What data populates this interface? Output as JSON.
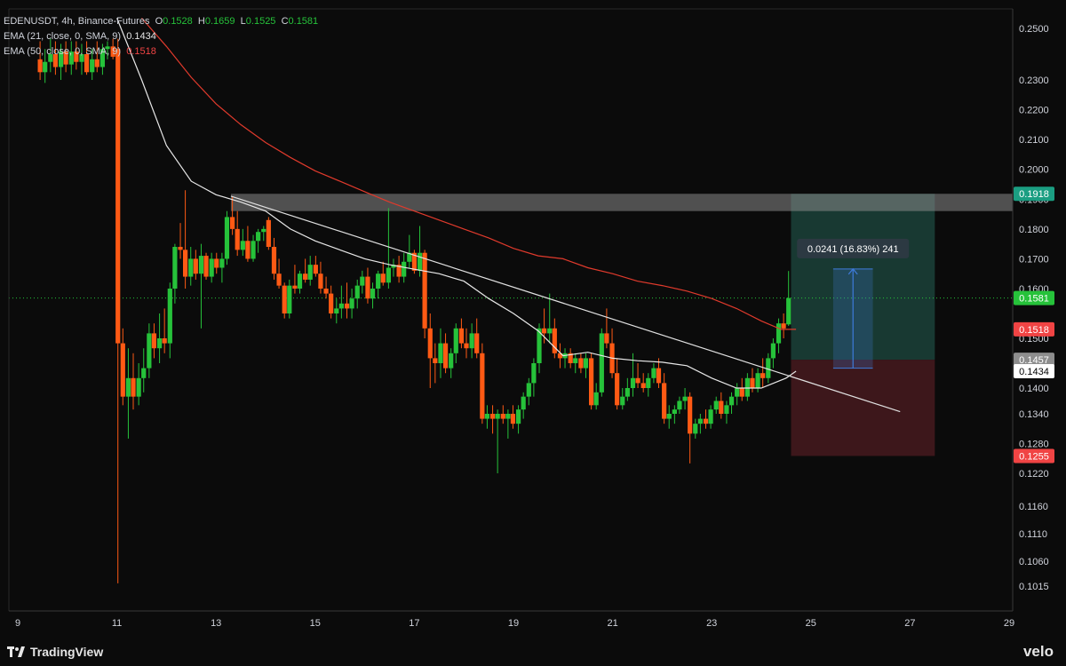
{
  "legend": {
    "symbol": "EDENUSDT, 4h, Binance-Futures",
    "o_label": "O",
    "o_value": "0.1528",
    "h_label": "H",
    "h_value": "0.1659",
    "l_label": "L",
    "l_value": "0.1525",
    "c_label": "C",
    "c_value": "0.1581",
    "ema21_label": "EMA (21, close, 0, SMA, 9)",
    "ema21_value": "0.1434",
    "ema50_label": "EMA (50, close, 0, SMA, 9)",
    "ema50_value": "0.1518"
  },
  "footer": {
    "brand": "TradingView",
    "watermark": "velo"
  },
  "colors": {
    "background": "#0b0b0b",
    "up": "#26c23a",
    "down": "#ff5a14",
    "ema21": "#e8e8e8",
    "ema50": "#e03a2c",
    "target_zone": "#1e4a40",
    "stop_zone": "#4a1a1f",
    "resistance_zone": "#8a8a8a",
    "measure": "#3e7bd9"
  },
  "chart_data": {
    "type": "candlestick",
    "x_ticks": [
      "9",
      "11",
      "13",
      "15",
      "17",
      "19",
      "21",
      "23",
      "25",
      "27",
      "29"
    ],
    "y_ticks": [
      "0.2500",
      "0.2300",
      "0.2200",
      "0.2100",
      "0.2000",
      "0.1900",
      "0.1800",
      "0.1700",
      "0.1600",
      "0.1500",
      "0.1400",
      "0.1340",
      "0.1280",
      "0.1220",
      "0.1160",
      "0.1110",
      "0.1060",
      "0.1015"
    ],
    "ylim": [
      0.0995,
      0.252
    ],
    "xlim": [
      8.8,
      29.25
    ],
    "price_labels": [
      {
        "value": 0.1918,
        "text": "0.1918",
        "color": "#1b9e82",
        "text_color": "#ffffff"
      },
      {
        "value": 0.1581,
        "text": "0.1581",
        "color": "#26c23a",
        "text_color": "#ffffff"
      },
      {
        "value": 0.1518,
        "text": "0.1518",
        "color": "#f04444",
        "text_color": "#ffffff"
      },
      {
        "value": 0.1457,
        "text": "0.1457",
        "color": "#8d8d8d",
        "text_color": "#ffffff"
      },
      {
        "value": 0.1434,
        "text": "0.1434",
        "color": "#ffffff",
        "text_color": "#000000"
      },
      {
        "value": 0.1255,
        "text": "0.1255",
        "color": "#f04444",
        "text_color": "#ffffff"
      }
    ],
    "last_price": 0.1581,
    "position": {
      "x_start": 24.6,
      "x_end": 27.5,
      "entry": 0.1457,
      "target": 0.1918,
      "stop": 0.1255
    },
    "resistance_zone": {
      "x_start": 13.3,
      "x_end": 29.25,
      "top": 0.1918,
      "bottom": 0.186
    },
    "trendline": {
      "x1": 13.3,
      "y1": 0.191,
      "x2": 26.8,
      "y2": 0.1345
    },
    "measure": {
      "x": 25.85,
      "from": 0.144,
      "to": 0.1666,
      "x_start": 25.45,
      "x_end": 26.25,
      "label": "0.0241 (16.83%) 241"
    },
    "ema21": [
      [
        11.0,
        0.254
      ],
      [
        11.5,
        0.23
      ],
      [
        12.0,
        0.208
      ],
      [
        12.5,
        0.196
      ],
      [
        13.0,
        0.1915
      ],
      [
        13.5,
        0.189
      ],
      [
        14.0,
        0.186
      ],
      [
        14.5,
        0.18
      ],
      [
        15.0,
        0.176
      ],
      [
        15.5,
        0.173
      ],
      [
        16.0,
        0.17
      ],
      [
        16.5,
        0.168
      ],
      [
        17.0,
        0.1665
      ],
      [
        17.5,
        0.165
      ],
      [
        18.0,
        0.1625
      ],
      [
        18.5,
        0.158
      ],
      [
        19.0,
        0.155
      ],
      [
        19.5,
        0.1515
      ],
      [
        20.0,
        0.1465
      ],
      [
        20.5,
        0.1472
      ],
      [
        21.0,
        0.146
      ],
      [
        21.5,
        0.1455
      ],
      [
        22.0,
        0.1452
      ],
      [
        22.5,
        0.1445
      ],
      [
        23.0,
        0.142
      ],
      [
        23.5,
        0.14
      ],
      [
        24.0,
        0.14
      ],
      [
        24.5,
        0.142
      ],
      [
        24.7,
        0.1434
      ]
    ],
    "ema50": [
      [
        11.5,
        0.254
      ],
      [
        12.0,
        0.243
      ],
      [
        12.5,
        0.231
      ],
      [
        13.0,
        0.222
      ],
      [
        13.5,
        0.215
      ],
      [
        14.0,
        0.209
      ],
      [
        14.5,
        0.204
      ],
      [
        15.0,
        0.1995
      ],
      [
        15.5,
        0.196
      ],
      [
        16.0,
        0.1925
      ],
      [
        16.5,
        0.189
      ],
      [
        17.0,
        0.186
      ],
      [
        17.5,
        0.183
      ],
      [
        18.0,
        0.18
      ],
      [
        18.5,
        0.177
      ],
      [
        19.0,
        0.1735
      ],
      [
        19.5,
        0.171
      ],
      [
        20.0,
        0.17
      ],
      [
        20.5,
        0.167
      ],
      [
        21.0,
        0.165
      ],
      [
        21.5,
        0.1625
      ],
      [
        22.0,
        0.161
      ],
      [
        22.5,
        0.1595
      ],
      [
        23.0,
        0.158
      ],
      [
        23.5,
        0.156
      ],
      [
        24.0,
        0.1535
      ],
      [
        24.4,
        0.1518
      ],
      [
        24.7,
        0.1518
      ]
    ],
    "candles": [
      [
        9.45,
        0.238,
        0.245,
        0.23,
        0.233
      ],
      [
        9.55,
        0.233,
        0.242,
        0.229,
        0.237
      ],
      [
        9.66,
        0.237,
        0.246,
        0.233,
        0.24
      ],
      [
        9.76,
        0.24,
        0.245,
        0.232,
        0.235
      ],
      [
        9.87,
        0.235,
        0.244,
        0.23,
        0.241
      ],
      [
        9.97,
        0.241,
        0.245,
        0.233,
        0.236
      ],
      [
        10.08,
        0.236,
        0.245,
        0.232,
        0.241
      ],
      [
        10.18,
        0.241,
        0.245,
        0.234,
        0.237
      ],
      [
        10.29,
        0.237,
        0.244,
        0.232,
        0.24
      ],
      [
        10.39,
        0.24,
        0.245,
        0.232,
        0.233
      ],
      [
        10.5,
        0.233,
        0.242,
        0.23,
        0.238
      ],
      [
        10.6,
        0.238,
        0.245,
        0.233,
        0.235
      ],
      [
        10.71,
        0.235,
        0.244,
        0.232,
        0.242
      ],
      [
        10.81,
        0.242,
        0.245,
        0.238,
        0.243
      ],
      [
        10.92,
        0.243,
        0.246,
        0.238,
        0.239
      ],
      [
        11.02,
        0.242,
        0.246,
        0.102,
        0.149
      ],
      [
        11.12,
        0.149,
        0.152,
        0.136,
        0.138
      ],
      [
        11.23,
        0.138,
        0.148,
        0.129,
        0.142
      ],
      [
        11.33,
        0.142,
        0.147,
        0.135,
        0.138
      ],
      [
        11.44,
        0.138,
        0.145,
        0.136,
        0.142
      ],
      [
        11.54,
        0.142,
        0.148,
        0.139,
        0.144
      ],
      [
        11.65,
        0.144,
        0.153,
        0.142,
        0.151
      ],
      [
        11.75,
        0.151,
        0.153,
        0.146,
        0.148
      ],
      [
        11.86,
        0.148,
        0.155,
        0.145,
        0.15
      ],
      [
        11.96,
        0.15,
        0.156,
        0.147,
        0.149
      ],
      [
        12.07,
        0.149,
        0.162,
        0.146,
        0.16
      ],
      [
        12.17,
        0.16,
        0.175,
        0.157,
        0.174
      ],
      [
        12.28,
        0.174,
        0.182,
        0.17,
        0.173
      ],
      [
        12.38,
        0.173,
        0.193,
        0.16,
        0.164
      ],
      [
        12.49,
        0.164,
        0.174,
        0.161,
        0.17
      ],
      [
        12.59,
        0.17,
        0.173,
        0.163,
        0.165
      ],
      [
        12.7,
        0.165,
        0.175,
        0.152,
        0.171
      ],
      [
        12.8,
        0.171,
        0.172,
        0.163,
        0.164
      ],
      [
        12.91,
        0.164,
        0.172,
        0.162,
        0.17
      ],
      [
        13.01,
        0.17,
        0.172,
        0.165,
        0.167
      ],
      [
        13.12,
        0.167,
        0.172,
        0.162,
        0.17
      ],
      [
        13.22,
        0.17,
        0.186,
        0.168,
        0.184
      ],
      [
        13.33,
        0.184,
        0.191,
        0.178,
        0.18
      ],
      [
        13.43,
        0.18,
        0.186,
        0.171,
        0.173
      ],
      [
        13.54,
        0.173,
        0.18,
        0.171,
        0.176
      ],
      [
        13.64,
        0.176,
        0.181,
        0.169,
        0.17
      ],
      [
        13.75,
        0.17,
        0.178,
        0.169,
        0.176
      ],
      [
        13.85,
        0.176,
        0.18,
        0.172,
        0.179
      ],
      [
        13.96,
        0.179,
        0.181,
        0.176,
        0.18
      ],
      [
        14.06,
        0.183,
        0.184,
        0.173,
        0.174
      ],
      [
        14.17,
        0.174,
        0.177,
        0.163,
        0.165
      ],
      [
        14.27,
        0.165,
        0.17,
        0.16,
        0.161
      ],
      [
        14.38,
        0.161,
        0.162,
        0.154,
        0.155
      ],
      [
        14.48,
        0.155,
        0.163,
        0.154,
        0.161
      ],
      [
        14.59,
        0.161,
        0.168,
        0.159,
        0.16
      ],
      [
        14.69,
        0.16,
        0.166,
        0.159,
        0.165
      ],
      [
        14.8,
        0.165,
        0.17,
        0.162,
        0.163
      ],
      [
        14.9,
        0.163,
        0.171,
        0.161,
        0.168
      ],
      [
        15.01,
        0.168,
        0.171,
        0.164,
        0.165
      ],
      [
        15.11,
        0.165,
        0.169,
        0.159,
        0.16
      ],
      [
        15.22,
        0.16,
        0.164,
        0.158,
        0.159
      ],
      [
        15.32,
        0.159,
        0.161,
        0.154,
        0.155
      ],
      [
        15.43,
        0.155,
        0.158,
        0.153,
        0.156
      ],
      [
        15.53,
        0.156,
        0.161,
        0.154,
        0.157
      ],
      [
        15.64,
        0.157,
        0.162,
        0.154,
        0.156
      ],
      [
        15.74,
        0.156,
        0.16,
        0.154,
        0.158
      ],
      [
        15.85,
        0.158,
        0.163,
        0.156,
        0.161
      ],
      [
        15.95,
        0.161,
        0.166,
        0.159,
        0.164
      ],
      [
        16.06,
        0.164,
        0.167,
        0.157,
        0.158
      ],
      [
        16.16,
        0.158,
        0.162,
        0.156,
        0.16
      ],
      [
        16.27,
        0.16,
        0.166,
        0.158,
        0.165
      ],
      [
        16.37,
        0.165,
        0.169,
        0.161,
        0.162
      ],
      [
        16.48,
        0.162,
        0.187,
        0.16,
        0.167
      ],
      [
        16.58,
        0.167,
        0.17,
        0.164,
        0.168
      ],
      [
        16.69,
        0.168,
        0.171,
        0.162,
        0.164
      ],
      [
        16.79,
        0.164,
        0.172,
        0.162,
        0.169
      ],
      [
        16.9,
        0.169,
        0.178,
        0.167,
        0.172
      ],
      [
        17.0,
        0.172,
        0.173,
        0.165,
        0.166
      ],
      [
        17.11,
        0.166,
        0.181,
        0.164,
        0.172
      ],
      [
        17.21,
        0.172,
        0.173,
        0.15,
        0.152
      ],
      [
        17.32,
        0.152,
        0.155,
        0.14,
        0.146
      ],
      [
        17.42,
        0.146,
        0.149,
        0.141,
        0.145
      ],
      [
        17.53,
        0.145,
        0.152,
        0.142,
        0.149
      ],
      [
        17.63,
        0.149,
        0.151,
        0.143,
        0.144
      ],
      [
        17.74,
        0.144,
        0.148,
        0.142,
        0.147
      ],
      [
        17.84,
        0.147,
        0.153,
        0.145,
        0.152
      ],
      [
        17.95,
        0.152,
        0.154,
        0.148,
        0.149
      ],
      [
        18.05,
        0.149,
        0.152,
        0.146,
        0.148
      ],
      [
        18.16,
        0.148,
        0.153,
        0.146,
        0.151
      ],
      [
        18.26,
        0.151,
        0.154,
        0.146,
        0.147
      ],
      [
        18.37,
        0.147,
        0.149,
        0.132,
        0.133
      ],
      [
        18.47,
        0.133,
        0.136,
        0.131,
        0.134
      ],
      [
        18.58,
        0.134,
        0.136,
        0.13,
        0.133
      ],
      [
        18.68,
        0.133,
        0.135,
        0.122,
        0.134
      ],
      [
        18.79,
        0.134,
        0.136,
        0.132,
        0.133
      ],
      [
        18.89,
        0.133,
        0.135,
        0.129,
        0.134
      ],
      [
        18.99,
        0.134,
        0.136,
        0.131,
        0.132
      ],
      [
        19.1,
        0.132,
        0.136,
        0.13,
        0.135
      ],
      [
        19.2,
        0.135,
        0.139,
        0.133,
        0.138
      ],
      [
        19.31,
        0.138,
        0.142,
        0.136,
        0.141
      ],
      [
        19.41,
        0.141,
        0.146,
        0.138,
        0.145
      ],
      [
        19.52,
        0.145,
        0.153,
        0.143,
        0.152
      ],
      [
        19.62,
        0.152,
        0.156,
        0.149,
        0.151
      ],
      [
        19.73,
        0.151,
        0.159,
        0.149,
        0.152
      ],
      [
        19.83,
        0.152,
        0.154,
        0.146,
        0.147
      ],
      [
        19.94,
        0.147,
        0.149,
        0.144,
        0.146
      ],
      [
        20.04,
        0.146,
        0.148,
        0.144,
        0.147
      ],
      [
        20.15,
        0.147,
        0.148,
        0.144,
        0.145
      ],
      [
        20.25,
        0.145,
        0.147,
        0.143,
        0.146
      ],
      [
        20.36,
        0.146,
        0.147,
        0.143,
        0.144
      ],
      [
        20.46,
        0.144,
        0.147,
        0.142,
        0.146
      ],
      [
        20.57,
        0.146,
        0.147,
        0.135,
        0.136
      ],
      [
        20.67,
        0.136,
        0.141,
        0.135,
        0.139
      ],
      [
        20.78,
        0.139,
        0.152,
        0.138,
        0.151
      ],
      [
        20.88,
        0.151,
        0.156,
        0.148,
        0.149
      ],
      [
        20.99,
        0.149,
        0.152,
        0.142,
        0.143
      ],
      [
        21.09,
        0.143,
        0.146,
        0.135,
        0.136
      ],
      [
        21.2,
        0.136,
        0.14,
        0.135,
        0.138
      ],
      [
        21.3,
        0.138,
        0.142,
        0.137,
        0.14
      ],
      [
        21.41,
        0.14,
        0.147,
        0.138,
        0.142
      ],
      [
        21.51,
        0.142,
        0.145,
        0.14,
        0.141
      ],
      [
        21.62,
        0.141,
        0.143,
        0.139,
        0.14
      ],
      [
        21.72,
        0.14,
        0.143,
        0.138,
        0.142
      ],
      [
        21.83,
        0.142,
        0.145,
        0.141,
        0.144
      ],
      [
        21.93,
        0.144,
        0.146,
        0.14,
        0.141
      ],
      [
        22.04,
        0.141,
        0.143,
        0.132,
        0.133
      ],
      [
        22.14,
        0.133,
        0.136,
        0.131,
        0.134
      ],
      [
        22.25,
        0.134,
        0.136,
        0.132,
        0.135
      ],
      [
        22.35,
        0.135,
        0.138,
        0.134,
        0.137
      ],
      [
        22.46,
        0.137,
        0.14,
        0.135,
        0.138
      ],
      [
        22.56,
        0.138,
        0.139,
        0.124,
        0.13
      ],
      [
        22.67,
        0.13,
        0.133,
        0.129,
        0.132
      ],
      [
        22.77,
        0.132,
        0.134,
        0.13,
        0.133
      ],
      [
        22.88,
        0.133,
        0.135,
        0.131,
        0.132
      ],
      [
        22.98,
        0.132,
        0.136,
        0.131,
        0.135
      ],
      [
        23.09,
        0.135,
        0.138,
        0.134,
        0.137
      ],
      [
        23.19,
        0.137,
        0.139,
        0.133,
        0.134
      ],
      [
        23.3,
        0.134,
        0.137,
        0.132,
        0.136
      ],
      [
        23.4,
        0.136,
        0.139,
        0.134,
        0.138
      ],
      [
        23.51,
        0.138,
        0.141,
        0.136,
        0.14
      ],
      [
        23.61,
        0.14,
        0.142,
        0.137,
        0.138
      ],
      [
        23.72,
        0.138,
        0.143,
        0.137,
        0.142
      ],
      [
        23.82,
        0.142,
        0.144,
        0.139,
        0.14
      ],
      [
        23.93,
        0.14,
        0.144,
        0.139,
        0.143
      ],
      [
        24.03,
        0.143,
        0.146,
        0.14,
        0.142
      ],
      [
        24.14,
        0.142,
        0.147,
        0.141,
        0.146
      ],
      [
        24.24,
        0.146,
        0.15,
        0.144,
        0.149
      ],
      [
        24.35,
        0.149,
        0.154,
        0.147,
        0.153
      ],
      [
        24.45,
        0.153,
        0.155,
        0.15,
        0.152
      ],
      [
        24.55,
        0.1528,
        0.1659,
        0.1525,
        0.1581
      ]
    ]
  }
}
